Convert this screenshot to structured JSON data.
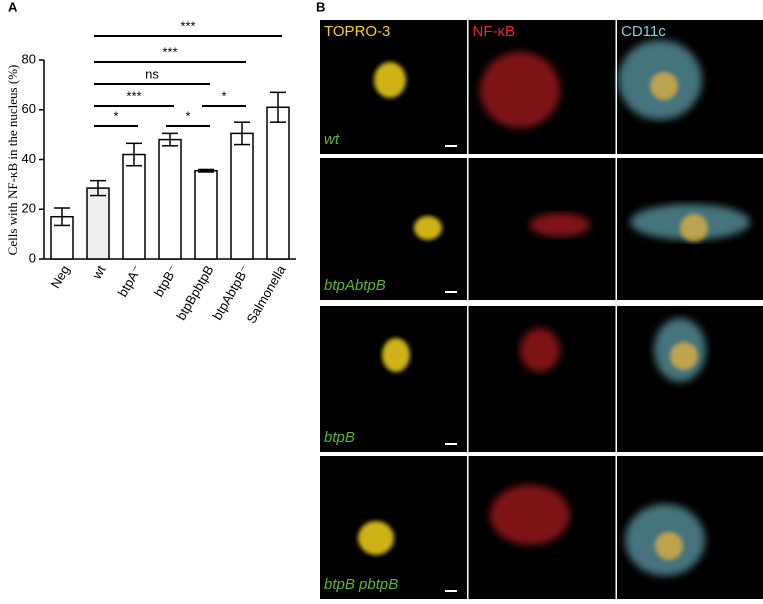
{
  "panel_a_label": "A",
  "chart_data": {
    "type": "bar",
    "y_label": "Cells with NF-κB in the nucleus (%)",
    "categories": [
      "Neg",
      "wt",
      "btpA⁻",
      "btpB⁻",
      "btpBpbtpB",
      "btpAbtpB⁻",
      "Salmonella"
    ],
    "values": [
      17,
      28.5,
      42,
      48,
      35.5,
      50.5,
      61
    ],
    "errors": [
      3.5,
      3,
      4.5,
      2.5,
      0.5,
      4.5,
      6
    ],
    "bar_colors": [
      "#ffffff",
      "#efefef",
      "#ffffff",
      "#ffffff",
      "#ffffff",
      "#ffffff",
      "#ffffff"
    ],
    "ylim": [
      0,
      80
    ],
    "yticks": [
      0,
      20,
      40,
      60,
      80
    ],
    "significance": [
      {
        "between": [
          "wt",
          "Salmonella"
        ],
        "label": "***"
      },
      {
        "between": [
          "wt",
          "btpAbtpB⁻"
        ],
        "label": "***"
      },
      {
        "between": [
          "wt",
          "btpBpbtpB"
        ],
        "label": "ns"
      },
      {
        "between": [
          "wt",
          "btpB⁻"
        ],
        "label": "***"
      },
      {
        "between": [
          "btpBpbtpB",
          "btpAbtpB⁻"
        ],
        "label": "*"
      },
      {
        "between": [
          "btpB⁻",
          "btpBpbtpB"
        ],
        "label": "*"
      },
      {
        "between": [
          "wt",
          "btpA⁻"
        ],
        "label": "*"
      }
    ]
  },
  "panel_b_label": "B",
  "microscopy": {
    "columns": [
      "TOPRO-3",
      "NF-κB",
      "CD11c"
    ],
    "column_colors": [
      "#f2d21b",
      "#e8262a",
      "#7fd3e3"
    ],
    "rows": [
      "wt",
      "btpAbtpB",
      "btpB",
      "btpB pbtpB"
    ],
    "row_label_color": "#5db436"
  }
}
